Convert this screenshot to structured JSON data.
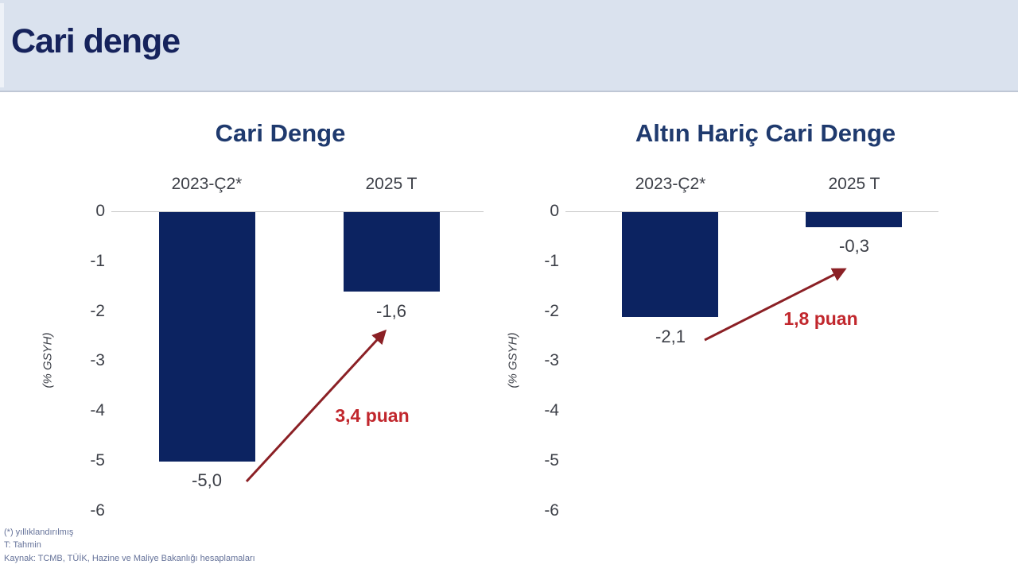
{
  "header": {
    "title": "Cari denge"
  },
  "charts": [
    {
      "title": "Cari Denge",
      "categories": [
        "2023-Ç2*",
        "2025 T"
      ],
      "value_labels": [
        "-5,0",
        "-1,6"
      ],
      "delta_label": "3,4 puan",
      "axis_label": "(% GSYH)",
      "yticks": [
        "0",
        "-1",
        "-2",
        "-3",
        "-4",
        "-5",
        "-6"
      ]
    },
    {
      "title": "Altın Hariç Cari Denge",
      "categories": [
        "2023-Ç2*",
        "2025 T"
      ],
      "value_labels": [
        "-2,1",
        "-0,3"
      ],
      "delta_label": "1,8 puan",
      "axis_label": "(% GSYH)",
      "yticks": [
        "0",
        "-1",
        "-2",
        "-3",
        "-4",
        "-5",
        "-6"
      ]
    }
  ],
  "footer": {
    "note1": "(*) yıllıklandırılmış",
    "note2": "T: Tahmin",
    "source": "Kaynak: TCMB, TÜİK, Hazine ve Maliye Bakanlığı hesaplamaları"
  },
  "colors": {
    "header_bg": "#dae2ee",
    "header_title": "#16235c",
    "chart_title": "#1f3a6e",
    "bar": "#0c2361",
    "arrow": "#8b2025",
    "delta_text": "#c1272d",
    "tick_text": "#3d4048",
    "footer_text": "#66739a"
  },
  "chart_data": [
    {
      "type": "bar",
      "title": "Cari Denge",
      "categories": [
        "2023-Ç2*",
        "2025 T"
      ],
      "values": [
        -5.0,
        -1.6
      ],
      "xlabel": "",
      "ylabel": "(% GSYH)",
      "ylim": [
        -6,
        0
      ],
      "yticks": [
        0,
        -1,
        -2,
        -3,
        -4,
        -5,
        -6
      ],
      "grid": false,
      "legend": false,
      "annotation": "3,4 puan"
    },
    {
      "type": "bar",
      "title": "Altın Hariç Cari Denge",
      "categories": [
        "2023-Ç2*",
        "2025 T"
      ],
      "values": [
        -2.1,
        -0.3
      ],
      "xlabel": "",
      "ylabel": "(% GSYH)",
      "ylim": [
        -6,
        0
      ],
      "yticks": [
        0,
        -1,
        -2,
        -3,
        -4,
        -5,
        -6
      ],
      "grid": false,
      "legend": false,
      "annotation": "1,8 puan"
    }
  ]
}
